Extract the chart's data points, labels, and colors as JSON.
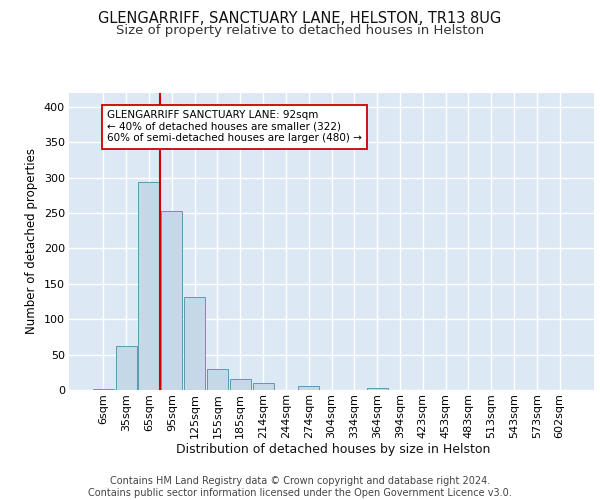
{
  "title1": "GLENGARRIFF, SANCTUARY LANE, HELSTON, TR13 8UG",
  "title2": "Size of property relative to detached houses in Helston",
  "xlabel": "Distribution of detached houses by size in Helston",
  "ylabel": "Number of detached properties",
  "footnote": "Contains HM Land Registry data © Crown copyright and database right 2024.\nContains public sector information licensed under the Open Government Licence v3.0.",
  "bar_labels": [
    "6sqm",
    "35sqm",
    "65sqm",
    "95sqm",
    "125sqm",
    "155sqm",
    "185sqm",
    "214sqm",
    "244sqm",
    "274sqm",
    "304sqm",
    "334sqm",
    "364sqm",
    "394sqm",
    "423sqm",
    "453sqm",
    "483sqm",
    "513sqm",
    "543sqm",
    "573sqm",
    "602sqm"
  ],
  "bar_values": [
    2,
    62,
    293,
    253,
    132,
    29,
    15,
    10,
    0,
    5,
    0,
    0,
    3,
    0,
    0,
    0,
    0,
    0,
    0,
    0,
    0
  ],
  "bar_color": "#c5d8e8",
  "bar_edge_color": "#5b9ab5",
  "vline_x_index": 2.5,
  "vline_color": "#cc0000",
  "annotation_text": "GLENGARRIFF SANCTUARY LANE: 92sqm\n← 40% of detached houses are smaller (322)\n60% of semi-detached houses are larger (480) →",
  "ylim": [
    0,
    420
  ],
  "yticks": [
    0,
    50,
    100,
    150,
    200,
    250,
    300,
    350,
    400
  ],
  "background_color": "#dce9f5",
  "grid_color": "#ffffff",
  "title1_fontsize": 10.5,
  "title2_fontsize": 9.5,
  "xlabel_fontsize": 9,
  "ylabel_fontsize": 8.5,
  "tick_fontsize": 8,
  "footnote_fontsize": 7,
  "annot_fontsize": 7.5
}
